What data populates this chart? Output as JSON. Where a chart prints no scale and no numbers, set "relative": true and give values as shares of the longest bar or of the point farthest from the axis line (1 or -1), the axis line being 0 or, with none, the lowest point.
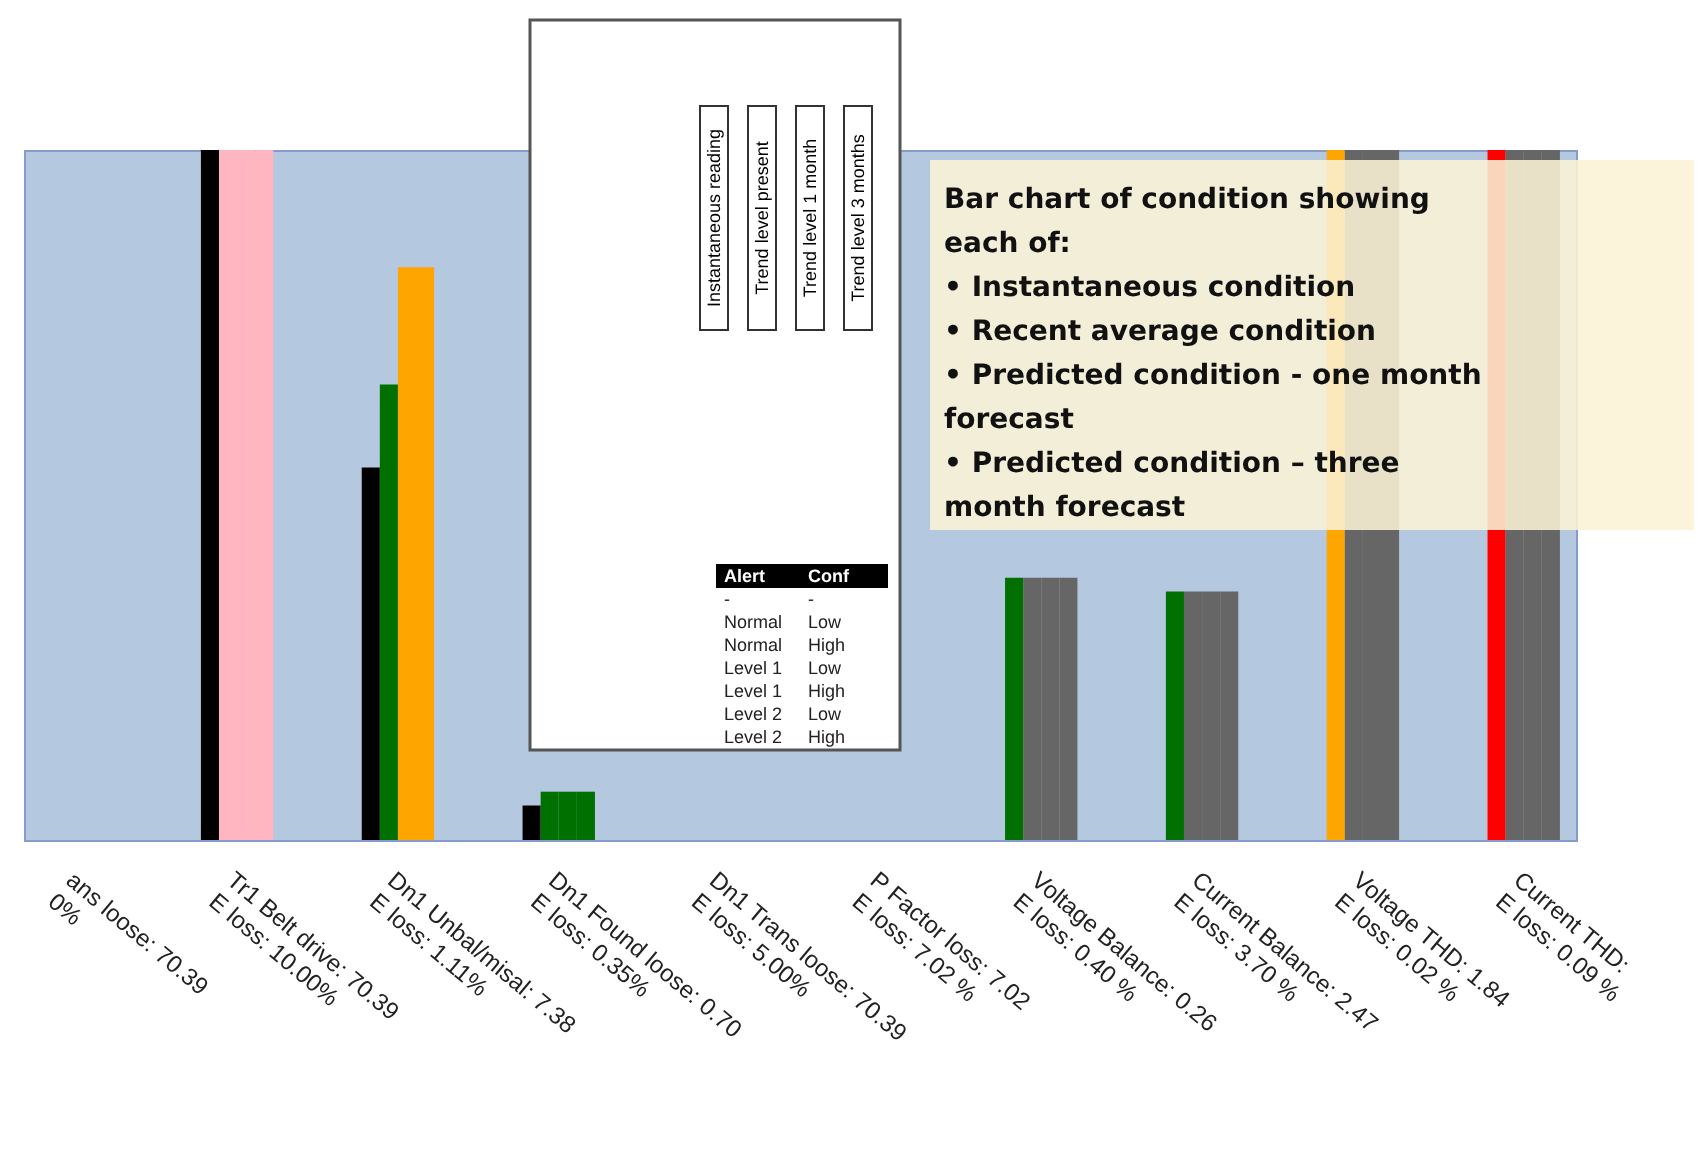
{
  "chart_data": {
    "type": "bar",
    "relative": true,
    "grid": false,
    "categories": [
      "ans loose: 70.39\n0%",
      "Tr1 Belt drive: 70.39\nE loss: 10.00%",
      "Dn1 Unbal/misal: 7.38\nE loss: 1.11%",
      "Dn1 Found loose: 0.70\nE loss: 0.35%",
      "Dn1 Trans loose: 70.39\nE loss: 5.00%",
      "P Factor loss: 7.02\nE loss: 7.02 %",
      "Voltage Balance: 0.26\nE loss: 0.40 %",
      "Current Balance: 2.47\nE loss: 3.70 %",
      "Voltage THD: 1.84\nE loss: 0.02 %",
      "Current THD: \nE loss: 0.09 %"
    ],
    "series": [
      {
        "colors": [
          "#000000",
          "#000000",
          "#000000",
          "#000000",
          "#000000",
          "#007000",
          "#007000",
          "#007000",
          "#ffa500",
          "#ff0000"
        ],
        "values": [
          null,
          1,
          0.54,
          0.05,
          null,
          null,
          0.38,
          0.36,
          1,
          1
        ]
      },
      {
        "colors": [
          "#ffb6c1",
          "#ffb6c1",
          "#007000",
          "#007000",
          "#ffb6c1",
          "#666666",
          "#666666",
          "#666666",
          "#666666",
          "#666666"
        ],
        "values": [
          null,
          1,
          0.66,
          0.07,
          null,
          null,
          0.38,
          0.36,
          1,
          1
        ]
      },
      {
        "colors": [
          "#ffb6c1",
          "#ffb6c1",
          "#ffa500",
          "#007000",
          "#ffb6c1",
          "#666666",
          "#666666",
          "#666666",
          "#666666",
          "#666666"
        ],
        "values": [
          null,
          1,
          0.83,
          0.07,
          null,
          null,
          0.38,
          0.36,
          1,
          1
        ]
      },
      {
        "colors": [
          "#ffb6c1",
          "#ffb6c1",
          "#ffa500",
          "#007000",
          "#ffb6c1",
          "#666666",
          "#666666",
          "#666666",
          "#666666",
          "#666666"
        ],
        "values": [
          null,
          1,
          0.83,
          0.07,
          null,
          null,
          0.38,
          0.36,
          1,
          1
        ]
      }
    ],
    "annotations": [
      "Bar chart of condition showing each of:",
      "• Instantaneous condition",
      "• Recent average condition",
      "• Predicted condition - one month forecast",
      "• Predicted condition – three month forecast",
      "Instantaneous reading",
      "Trend level present",
      "Trend level 1 month",
      "Trend level 3 months",
      "Alert",
      "Conf",
      "-",
      "-",
      "Normal",
      "Low",
      "Normal",
      "High",
      "Level 1",
      "Low",
      "Level 1",
      "High",
      "Level 2",
      "Low",
      "Level 2",
      "High"
    ]
  }
}
